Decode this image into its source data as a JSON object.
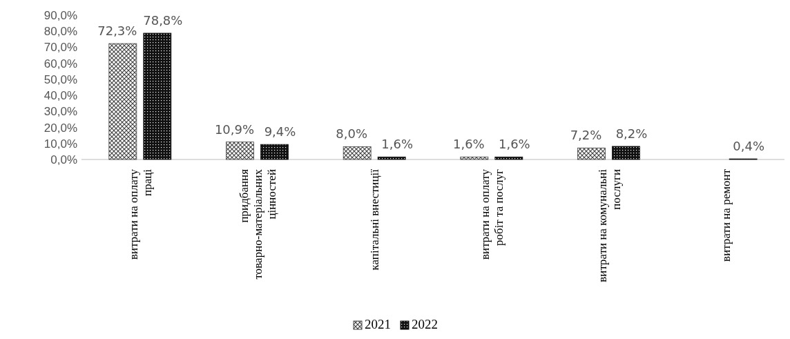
{
  "chart_data": {
    "type": "bar",
    "categories": [
      "витрати на оплату праці",
      "придбання товарно-матеріальних цінностей",
      "капітальні внестиції",
      "витрати на оплату робіт та послуг",
      "витрати на комунальні послуги",
      "витрати на ремонт"
    ],
    "series": [
      {
        "name": "2021",
        "color": "#444444",
        "values": [
          72.3,
          10.9,
          8.0,
          1.6,
          7.2,
          null
        ],
        "value_labels": [
          "72,3%",
          "10,9%",
          "8,0%",
          "1,6%",
          "7,2%",
          null
        ]
      },
      {
        "name": "2022",
        "color": "#111111",
        "values": [
          78.8,
          9.4,
          1.6,
          1.6,
          8.2,
          0.4
        ],
        "value_labels": [
          "78,8%",
          "9,4%",
          "1,6%",
          "1,6%",
          "8,2%",
          "0,4%"
        ]
      }
    ],
    "ylim": [
      0,
      90
    ],
    "yticks": [
      {
        "value": 0,
        "label": "0,0%"
      },
      {
        "value": 10,
        "label": "10,0%"
      },
      {
        "value": 20,
        "label": "20,0%"
      },
      {
        "value": 30,
        "label": "30,0%"
      },
      {
        "value": 40,
        "label": "40,0%"
      },
      {
        "value": 50,
        "label": "50,0%"
      },
      {
        "value": 60,
        "label": "60,0%"
      },
      {
        "value": 70,
        "label": "70,0%"
      },
      {
        "value": 80,
        "label": "80,0%"
      },
      {
        "value": 90,
        "label": "90,0%"
      }
    ],
    "grid": false,
    "legend": "bottom"
  }
}
